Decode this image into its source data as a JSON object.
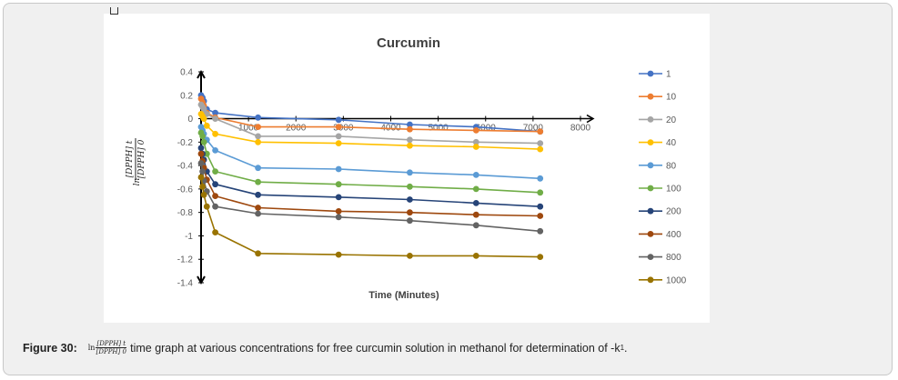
{
  "figure": {
    "label": "Figure 30:",
    "frac_ln": "ln",
    "frac_num": "[DPPH] t",
    "frac_den": "[DPPH] 0",
    "text_main": " time graph at various concentrations for free curcumin solution in methanol for determination of -k",
    "text_sub": "1",
    "text_end": "."
  },
  "chart_data": {
    "type": "line",
    "title": "Curcumin",
    "xlabel": "Time (Minutes)",
    "ylabel_ln": "ln",
    "ylabel_num": "[DPPH] t",
    "ylabel_den": "[DPPH] 0",
    "xlim": [
      0,
      8000
    ],
    "ylim": [
      -1.4,
      0.4
    ],
    "xticks": [
      0,
      1000,
      2000,
      3000,
      4000,
      5000,
      6000,
      7000,
      8000
    ],
    "xtick_labels": [
      "0",
      "1000",
      "2000",
      "3000",
      "4000",
      "5000",
      "6000",
      "7000",
      "8000"
    ],
    "yticks": [
      0.4,
      0.2,
      0,
      -0.2,
      -0.4,
      -0.6,
      -0.8,
      -1,
      -1.2,
      -1.4
    ],
    "ytick_labels": [
      "0.4",
      "0.2",
      "0",
      "-0.2",
      "-0.4",
      "-0.6",
      "-0.8",
      "-1",
      "-1.2",
      "-1.4"
    ],
    "x": [
      0,
      30,
      60,
      120,
      300,
      1200,
      2900,
      4400,
      5800,
      7150
    ],
    "legend_position": "right",
    "series": [
      {
        "name": "1",
        "color": "#4472c4",
        "values": [
          0.2,
          0.18,
          0.15,
          0.08,
          0.05,
          0.01,
          -0.01,
          -0.05,
          -0.07,
          -0.11
        ]
      },
      {
        "name": "10",
        "color": "#ed7d31",
        "values": [
          0.17,
          0.14,
          0.11,
          0.05,
          0.01,
          -0.07,
          -0.07,
          -0.09,
          -0.1,
          -0.11
        ]
      },
      {
        "name": "20",
        "color": "#a5a5a5",
        "values": [
          0.12,
          0.1,
          0.08,
          0.04,
          0.0,
          -0.15,
          -0.15,
          -0.18,
          -0.2,
          -0.21
        ]
      },
      {
        "name": "40",
        "color": "#ffc000",
        "values": [
          0.04,
          0.02,
          0.0,
          -0.06,
          -0.13,
          -0.2,
          -0.21,
          -0.23,
          -0.24,
          -0.26
        ]
      },
      {
        "name": "80",
        "color": "#5b9bd5",
        "values": [
          -0.07,
          -0.1,
          -0.13,
          -0.18,
          -0.27,
          -0.42,
          -0.43,
          -0.46,
          -0.48,
          -0.51
        ]
      },
      {
        "name": "100",
        "color": "#70ad47",
        "values": [
          -0.12,
          -0.15,
          -0.2,
          -0.3,
          -0.45,
          -0.54,
          -0.56,
          -0.58,
          -0.6,
          -0.63
        ]
      },
      {
        "name": "200",
        "color": "#264478",
        "values": [
          -0.25,
          -0.3,
          -0.35,
          -0.45,
          -0.56,
          -0.65,
          -0.67,
          -0.69,
          -0.72,
          -0.75
        ]
      },
      {
        "name": "400",
        "color": "#9e480e",
        "values": [
          -0.3,
          -0.36,
          -0.42,
          -0.52,
          -0.66,
          -0.76,
          -0.79,
          -0.8,
          -0.82,
          -0.83
        ]
      },
      {
        "name": "800",
        "color": "#636363",
        "values": [
          -0.38,
          -0.45,
          -0.53,
          -0.62,
          -0.75,
          -0.81,
          -0.84,
          -0.87,
          -0.91,
          -0.96
        ]
      },
      {
        "name": "1000",
        "color": "#997300",
        "values": [
          -0.5,
          -0.58,
          -0.65,
          -0.75,
          -0.97,
          -1.15,
          -1.16,
          -1.17,
          -1.17,
          -1.18
        ]
      }
    ]
  }
}
